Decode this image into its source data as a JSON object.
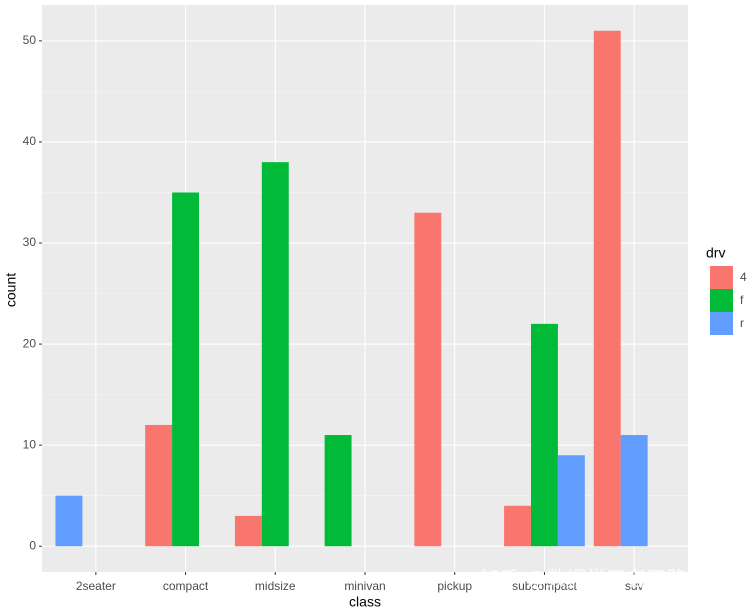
{
  "chart_data": {
    "type": "bar",
    "categories": [
      "2seater",
      "compact",
      "midsize",
      "minivan",
      "pickup",
      "subcompact",
      "suv"
    ],
    "series": [
      {
        "name": "4",
        "color": "#F8766D",
        "values": [
          null,
          12,
          3,
          null,
          33,
          4,
          51
        ]
      },
      {
        "name": "f",
        "color": "#00BA38",
        "values": [
          null,
          35,
          38,
          11,
          null,
          22,
          null
        ]
      },
      {
        "name": "r",
        "color": "#619CFF",
        "values": [
          5,
          null,
          null,
          null,
          null,
          9,
          11
        ]
      }
    ],
    "x_label": "class",
    "y_label": "count",
    "legend_title": "drv",
    "legend": "right",
    "ylim": [
      -2.55,
      53.55
    ],
    "yticks": [
      0,
      10,
      20,
      30,
      40,
      50
    ],
    "grid": true,
    "watermark": "知乎 @数据学习者王路情"
  }
}
